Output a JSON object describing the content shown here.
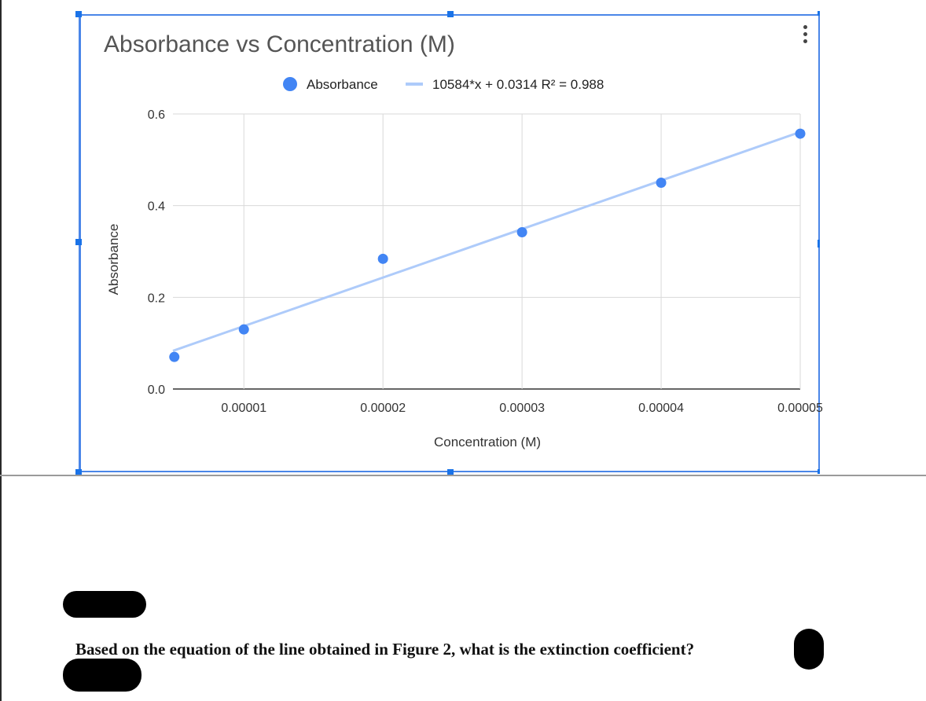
{
  "chart_data": {
    "type": "scatter",
    "title": "Absorbance vs Concentration (M)",
    "xlabel": "Concentration (M)",
    "ylabel": "Absorbance",
    "x_ticks": [
      "0.00001",
      "0.00002",
      "0.00003",
      "0.00004",
      "0.00005"
    ],
    "y_ticks": [
      "0.0",
      "0.2",
      "0.4",
      "0.6"
    ],
    "xlim": [
      4.9e-06,
      5e-05
    ],
    "ylim": [
      0,
      0.6
    ],
    "grid": true,
    "legend_position": "top",
    "series": [
      {
        "name": "Absorbance",
        "color": "#4285f4",
        "points": [
          {
            "x": 5e-06,
            "y": 0.07
          },
          {
            "x": 1e-05,
            "y": 0.13
          },
          {
            "x": 2e-05,
            "y": 0.284
          },
          {
            "x": 3e-05,
            "y": 0.342
          },
          {
            "x": 4e-05,
            "y": 0.45
          },
          {
            "x": 5e-05,
            "y": 0.557
          }
        ]
      }
    ],
    "trendline": {
      "label": "10584*x + 0.0314 R² = 0.988",
      "slope": 10584,
      "intercept": 0.0314,
      "color": "#aecbfa"
    }
  },
  "question_text": "Based on the equation of the line obtained in Figure 2, what is the extinction coefficient?",
  "colors": {
    "frame": "#4a86e8",
    "points": "#4285f4",
    "trendline": "#aecbfa",
    "grid": "#d9d9d9"
  }
}
